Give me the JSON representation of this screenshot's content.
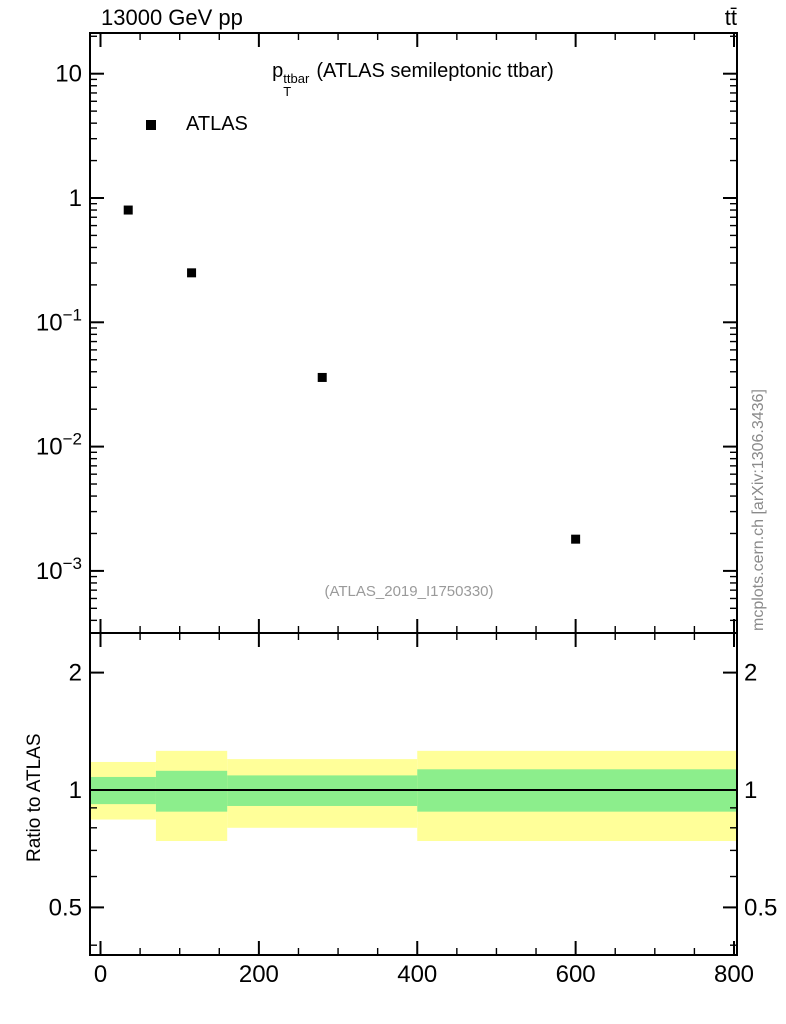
{
  "header": {
    "left": "13000 GeV pp",
    "right": "tt̄"
  },
  "main": {
    "title": {
      "base": "p",
      "sup": "ttbar",
      "sub": "T",
      "rest": "(ATLAS semileptonic ttbar)"
    },
    "legend": [
      {
        "label": "ATLAS",
        "marker": "filled-square",
        "color": "#000000"
      }
    ],
    "watermark": "(ATLAS_2019_I1750330)"
  },
  "ratio": {
    "ylabel": "Ratio to ATLAS"
  },
  "side_credit": "mcplots.cern.ch [arXiv:1306.3436]",
  "chart_data": [
    {
      "type": "scatter",
      "title": "p_T^ttbar (ATLAS semileptonic ttbar)",
      "xlabel": "",
      "ylabel": "",
      "x_range": [
        -13,
        804
      ],
      "y_range_log": [
        0.0003,
        21
      ],
      "x_ticks_major": {
        "values": [
          0,
          200,
          400,
          600,
          800
        ],
        "labels": [
          "0",
          "200",
          "400",
          "600",
          "800"
        ]
      },
      "x_minor_step": 50,
      "y_major_decades": [
        -3,
        -2,
        -1,
        0,
        1
      ],
      "grid": false,
      "legend_position": "top-left",
      "series": [
        {
          "name": "ATLAS",
          "marker": "filled-square",
          "color": "#000000",
          "x": [
            35,
            115,
            280,
            600
          ],
          "y": [
            0.8,
            0.25,
            0.036,
            0.0018
          ]
        }
      ],
      "bin_edges": [
        0,
        70,
        160,
        400,
        800
      ],
      "watermark": "(ATLAS_2019_I1750330)"
    },
    {
      "type": "ratio-band",
      "ylabel": "Ratio to ATLAS",
      "y_range_log": [
        0.38,
        2.53
      ],
      "y_ticks_labeled": {
        "values": [
          0.5,
          1,
          2
        ],
        "labels": [
          "0.5",
          "1",
          "2"
        ]
      },
      "y_ticks_minor": [
        0.4,
        0.6,
        0.7,
        0.8,
        0.9
      ],
      "reference_line": 1.0,
      "band_colors": {
        "outer": "#ffff99",
        "inner": "#8cee8c"
      },
      "bands": [
        {
          "x0": 0,
          "x1": 70,
          "outer": [
            0.84,
            1.18
          ],
          "inner": [
            0.92,
            1.08
          ]
        },
        {
          "x0": 70,
          "x1": 160,
          "outer": [
            0.74,
            1.26
          ],
          "inner": [
            0.88,
            1.12
          ]
        },
        {
          "x0": 160,
          "x1": 400,
          "outer": [
            0.8,
            1.2
          ],
          "inner": [
            0.91,
            1.09
          ]
        },
        {
          "x0": 400,
          "x1": 800,
          "outer": [
            0.74,
            1.26
          ],
          "inner": [
            0.88,
            1.13
          ]
        }
      ]
    }
  ]
}
